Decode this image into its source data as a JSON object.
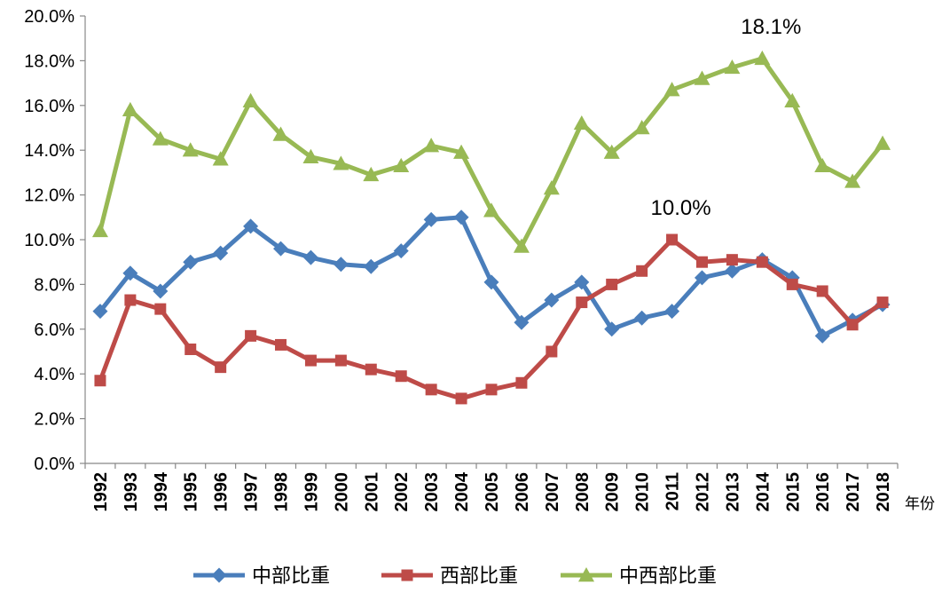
{
  "chart_data": {
    "type": "line",
    "xlabel": "年份",
    "ylabel": "",
    "ylim": [
      0,
      20
    ],
    "yticks": [
      "0.0%",
      "2.0%",
      "4.0%",
      "6.0%",
      "8.0%",
      "10.0%",
      "12.0%",
      "14.0%",
      "16.0%",
      "18.0%",
      "20.0%"
    ],
    "categories": [
      "1992",
      "1993",
      "1994",
      "1995",
      "1996",
      "1997",
      "1998",
      "1999",
      "2000",
      "2001",
      "2002",
      "2003",
      "2004",
      "2005",
      "2006",
      "2007",
      "2008",
      "2009",
      "2010",
      "2011",
      "2012",
      "2013",
      "2014",
      "2015",
      "2016",
      "2017",
      "2018"
    ],
    "legend_position": "bottom",
    "grid": false,
    "series": [
      {
        "name": "中部比重",
        "color": "#4a7ebb",
        "marker": "diamond",
        "values": [
          6.8,
          8.5,
          7.7,
          9.0,
          9.4,
          10.6,
          9.6,
          9.2,
          8.9,
          8.8,
          9.5,
          10.9,
          11.0,
          8.1,
          6.3,
          7.3,
          8.1,
          6.0,
          6.5,
          6.8,
          8.3,
          8.6,
          9.1,
          8.3,
          5.7,
          6.4,
          7.1
        ]
      },
      {
        "name": "西部比重",
        "color": "#be4b48",
        "marker": "square",
        "values": [
          3.7,
          7.3,
          6.9,
          5.1,
          4.3,
          5.7,
          5.3,
          4.6,
          4.6,
          4.2,
          3.9,
          3.3,
          2.9,
          3.3,
          3.6,
          5.0,
          7.2,
          8.0,
          8.6,
          10.0,
          9.0,
          9.1,
          9.0,
          8.0,
          7.7,
          6.2,
          7.2
        ]
      },
      {
        "name": "中西部比重",
        "color": "#98b954",
        "marker": "triangle",
        "values": [
          10.4,
          15.8,
          14.5,
          14.0,
          13.6,
          16.2,
          14.7,
          13.7,
          13.4,
          12.9,
          13.3,
          14.2,
          13.9,
          11.3,
          9.7,
          12.3,
          15.2,
          13.9,
          15.0,
          16.7,
          17.2,
          17.7,
          18.1,
          16.2,
          13.3,
          12.6,
          14.3
        ]
      }
    ],
    "annotations": [
      {
        "text": "18.1%",
        "category": "2014",
        "value": 18.1
      },
      {
        "text": "10.0%",
        "category": "2011",
        "value": 10.0
      }
    ]
  }
}
